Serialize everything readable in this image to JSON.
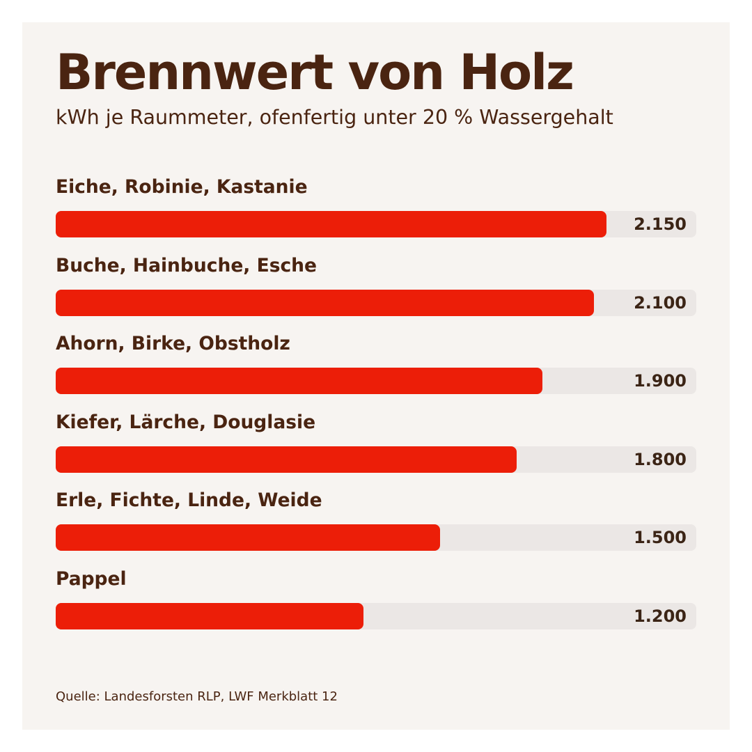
{
  "header": {
    "title": "Brennwert von Holz",
    "subtitle": "kWh je Raummeter, ofenfertig unter 20 % Wassergehalt"
  },
  "footer": {
    "source": "Quelle: Landesforsten RLP, LWF Merkblatt 12"
  },
  "colors": {
    "bar": "#ec1e08",
    "track": "#ebe7e5",
    "text": "#4a2411",
    "background": "#f7f4f1"
  },
  "chart_data": {
    "type": "bar",
    "orientation": "horizontal",
    "title": "Brennwert von Holz",
    "subtitle": "kWh je Raummeter, ofenfertig unter 20 % Wassergehalt",
    "categories": [
      "Eiche, Robinie, Kastanie",
      "Buche, Hainbuche, Esche",
      "Ahorn, Birke, Obstholz",
      "Kiefer, Lärche, Douglasie",
      "Erle, Fichte, Linde, Weide",
      "Pappel"
    ],
    "values": [
      2150,
      2100,
      1900,
      1800,
      1500,
      1200
    ],
    "value_labels": [
      "2.150",
      "2.100",
      "1.900",
      "1.800",
      "1.500",
      "1.200"
    ],
    "xlim": [
      0,
      2500
    ],
    "grid": false,
    "legend": "none"
  }
}
